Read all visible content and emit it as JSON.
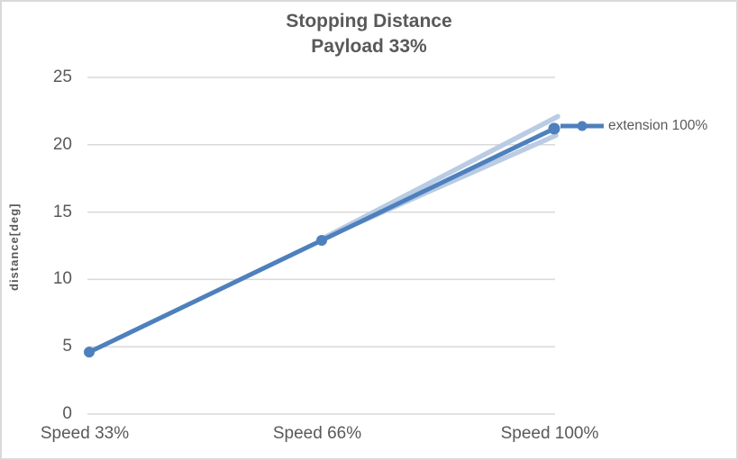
{
  "title": {
    "line1": "Stopping Distance",
    "line2": "Payload 33%"
  },
  "y_axis": {
    "title": "distance[deg]",
    "ticks": [
      0,
      5,
      10,
      15,
      20,
      25
    ],
    "min": 0,
    "max": 25
  },
  "x_axis": {
    "categories": [
      "Speed 33%",
      "Speed 66%",
      "Speed 100%"
    ]
  },
  "legend": {
    "label": "extension 100%"
  },
  "colors": {
    "series": "#4e80bd",
    "band": "#b9cce4",
    "grid": "#d9d9d9",
    "text": "#595959"
  },
  "chart_data": {
    "type": "line",
    "title": "Stopping Distance Payload 33%",
    "ylabel": "distance[deg]",
    "ylim": [
      0,
      25
    ],
    "grid": true,
    "legend_position": "right",
    "categories": [
      "Speed 33%",
      "Speed 66%",
      "Speed 100%"
    ],
    "series": [
      {
        "name": "extension 100%",
        "values": [
          4.6,
          12.9,
          21.2
        ],
        "color": "#4e80bd",
        "marker": "circle"
      }
    ],
    "variation_band": {
      "description": "light blue spread band behind main line from Speed 66% to Speed 100%",
      "upper": [
        null,
        13.0,
        22.1
      ],
      "lower": [
        null,
        13.0,
        20.7
      ],
      "color": "#b9cce4"
    }
  }
}
